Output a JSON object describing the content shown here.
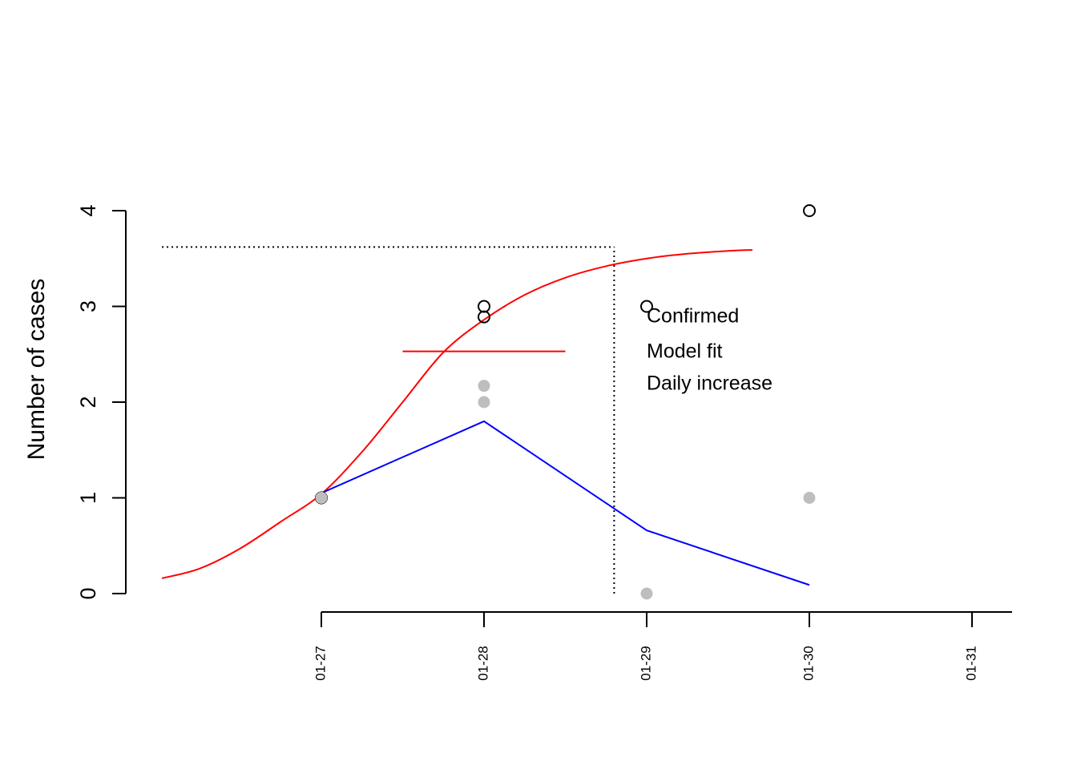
{
  "chart_data": {
    "type": "line",
    "title": "",
    "xlabel": "",
    "ylabel": "Number of cases",
    "ylim": [
      0,
      4
    ],
    "yticks": [
      0,
      1,
      2,
      3,
      4
    ],
    "xlim": [
      "01-27",
      "01-31"
    ],
    "xticks": [
      "01-27",
      "01-28",
      "01-29",
      "01-30",
      "01-31"
    ],
    "grid": false,
    "legend": {
      "position": "right",
      "entries": [
        "Confirmed",
        "Model fit",
        "Daily increase"
      ]
    },
    "series": [
      {
        "name": "Confirmed",
        "kind": "scatter-open-circle",
        "color": "#000000",
        "points": [
          {
            "x": "01-27",
            "y": 1
          },
          {
            "x": "01-28",
            "y": 3
          },
          {
            "x": "01-28",
            "y": 2.89
          },
          {
            "x": "01-29",
            "y": 3
          },
          {
            "x": "01-30",
            "y": 4
          }
        ]
      },
      {
        "name": "Daily increase",
        "kind": "scatter-filled-circle",
        "color": "#bebebe",
        "points": [
          {
            "x": "01-27",
            "y": 1
          },
          {
            "x": "01-28",
            "y": 2.17
          },
          {
            "x": "01-28",
            "y": 2
          },
          {
            "x": "01-29",
            "y": 0
          },
          {
            "x": "01-30",
            "y": 1
          }
        ]
      },
      {
        "name": "Model fit",
        "kind": "line",
        "color": "#ff0000",
        "points": [
          {
            "x": "01-26.02",
            "y": 0.16
          },
          {
            "x": "01-26.25",
            "y": 0.26
          },
          {
            "x": "01-26.5",
            "y": 0.47
          },
          {
            "x": "01-26.75",
            "y": 0.75
          },
          {
            "x": "01-27",
            "y": 1.04
          },
          {
            "x": "01-27.25",
            "y": 1.48
          },
          {
            "x": "01-27.5",
            "y": 2.0
          },
          {
            "x": "01-27.75",
            "y": 2.52
          },
          {
            "x": "01-28",
            "y": 2.86
          },
          {
            "x": "01-28.25",
            "y": 3.12
          },
          {
            "x": "01-28.5",
            "y": 3.3
          },
          {
            "x": "01-28.75",
            "y": 3.42
          },
          {
            "x": "01-29",
            "y": 3.5
          },
          {
            "x": "01-29.25",
            "y": 3.55
          },
          {
            "x": "01-29.5",
            "y": 3.58
          },
          {
            "x": "01-29.65",
            "y": 3.59
          }
        ]
      },
      {
        "name": "",
        "kind": "line",
        "color": "#0000ff",
        "points": [
          {
            "x": "01-27",
            "y": 1.05
          },
          {
            "x": "01-28",
            "y": 1.8
          },
          {
            "x": "01-29",
            "y": 0.66
          },
          {
            "x": "01-30",
            "y": 0.09
          }
        ]
      },
      {
        "name": "",
        "kind": "segment",
        "color": "#ff0000",
        "points": [
          {
            "x": "01-27.5",
            "y": 2.53
          },
          {
            "x": "01-28.5",
            "y": 2.53
          }
        ]
      }
    ],
    "reference_lines": {
      "horizontal_dotted": {
        "y": 3.62,
        "x_from": "01-26.02",
        "x_to": "01-28.8"
      },
      "vertical_dotted": {
        "x": "01-28.8",
        "y_from": 0,
        "y_to": 3.62
      }
    }
  }
}
